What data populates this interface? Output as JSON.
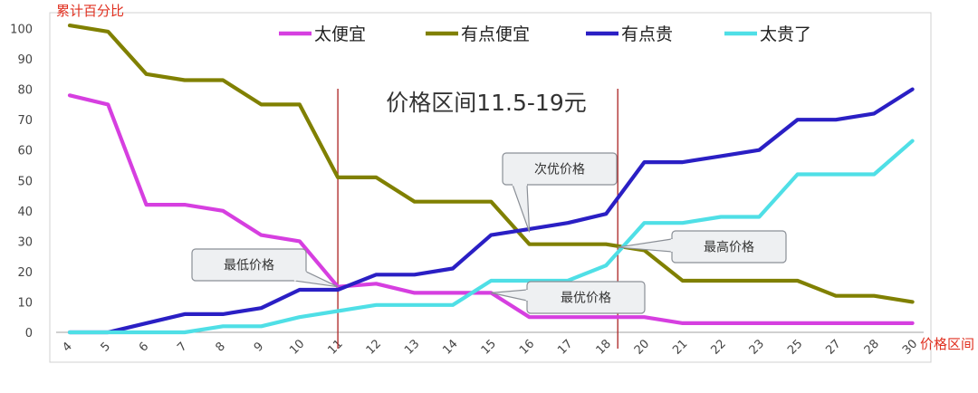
{
  "chart_data": {
    "type": "line",
    "ylabel": "累计百分比",
    "xlabel": "价格区间",
    "ylim": [
      0,
      100
    ],
    "yticks": [
      0,
      10,
      20,
      30,
      40,
      50,
      60,
      70,
      80,
      90,
      100
    ],
    "categories": [
      "4",
      "5",
      "6",
      "7",
      "8",
      "9",
      "10",
      "11",
      "12",
      "13",
      "14",
      "15",
      "16",
      "17",
      "18",
      "20",
      "21",
      "22",
      "23",
      "25",
      "27",
      "28",
      "30"
    ],
    "legend_position": "top",
    "grid": false,
    "series": [
      {
        "name": "太便宜",
        "color": "#d63fe0",
        "values": [
          78,
          75,
          42,
          42,
          40,
          32,
          30,
          15,
          16,
          13,
          13,
          13,
          5,
          5,
          5,
          5,
          3,
          3,
          3,
          3,
          3,
          3,
          3
        ]
      },
      {
        "name": "有点便宜",
        "color": "#808000",
        "values": [
          101,
          99,
          85,
          83,
          83,
          75,
          75,
          51,
          51,
          43,
          43,
          43,
          29,
          29,
          29,
          27,
          17,
          17,
          17,
          17,
          12,
          12,
          10
        ]
      },
      {
        "name": "有点贵",
        "color": "#2a1fc4",
        "values": [
          0,
          0,
          3,
          6,
          6,
          8,
          14,
          14,
          19,
          19,
          21,
          32,
          34,
          36,
          39,
          56,
          56,
          58,
          60,
          70,
          70,
          72,
          80
        ]
      },
      {
        "name": "太贵了",
        "color": "#4fdfe6",
        "values": [
          0,
          0,
          0,
          0,
          2,
          2,
          5,
          7,
          9,
          9,
          9,
          17,
          17,
          17,
          22,
          36,
          36,
          38,
          38,
          52,
          52,
          52,
          63
        ]
      }
    ],
    "annotations": {
      "range_title": "价格区间11.5-19元",
      "vlines_after_category": [
        "11",
        "18"
      ],
      "callouts": [
        {
          "text": "最低价格",
          "point_x": "11",
          "point_y": 15
        },
        {
          "text": "次优价格",
          "point_x": "16",
          "point_y": 33
        },
        {
          "text": "最高价格",
          "point_x": "18",
          "point_y": 28
        },
        {
          "text": "最优价格",
          "point_x": "15",
          "point_y": 13
        }
      ]
    }
  }
}
